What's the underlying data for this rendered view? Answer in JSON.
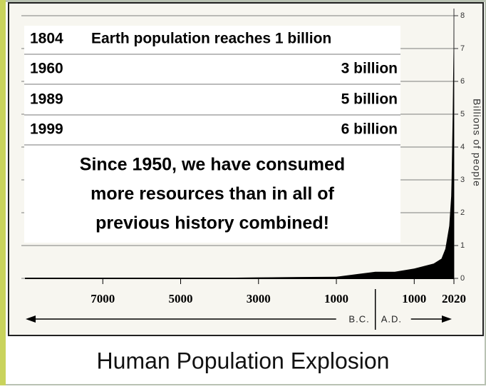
{
  "chart_data": {
    "type": "area",
    "title": "Human Population Explosion",
    "x": [
      -9000,
      -8000,
      -6000,
      -5000,
      -4000,
      -3000,
      -2000,
      -1000,
      1,
      500,
      1000,
      1500,
      1700,
      1800,
      1900,
      1950,
      1960,
      1970,
      1989,
      1999,
      2010,
      2020
    ],
    "values": [
      0.005,
      0.005,
      0.008,
      0.01,
      0.015,
      0.03,
      0.04,
      0.05,
      0.2,
      0.2,
      0.3,
      0.45,
      0.6,
      0.9,
      1.6,
      2.5,
      3,
      3.7,
      5,
      6,
      6.9,
      7.8
    ],
    "color": "#000000",
    "xlim": [
      -9000,
      2020
    ],
    "xticks": [
      {
        "value": -7000,
        "label": "7000"
      },
      {
        "value": -5000,
        "label": "5000"
      },
      {
        "value": -3000,
        "label": "3000"
      },
      {
        "value": -1000,
        "label": "1000"
      },
      1000,
      2020
    ],
    "ylim": [
      0,
      8
    ],
    "yticks": [
      0,
      1,
      2,
      3,
      4,
      5,
      6,
      7,
      8
    ],
    "y_label": "Billions of people",
    "era_labels": [
      "B.C.",
      "A.D."
    ],
    "table": [
      [
        "1804",
        "Earth population reaches 1 billion"
      ],
      [
        "1960",
        "3 billion"
      ],
      [
        "1989",
        "5 billion"
      ],
      [
        "1999",
        "6 billion"
      ]
    ],
    "note": [
      "Since 1950, we have consumed",
      "more resources than in all of",
      "previous history combined!"
    ]
  }
}
